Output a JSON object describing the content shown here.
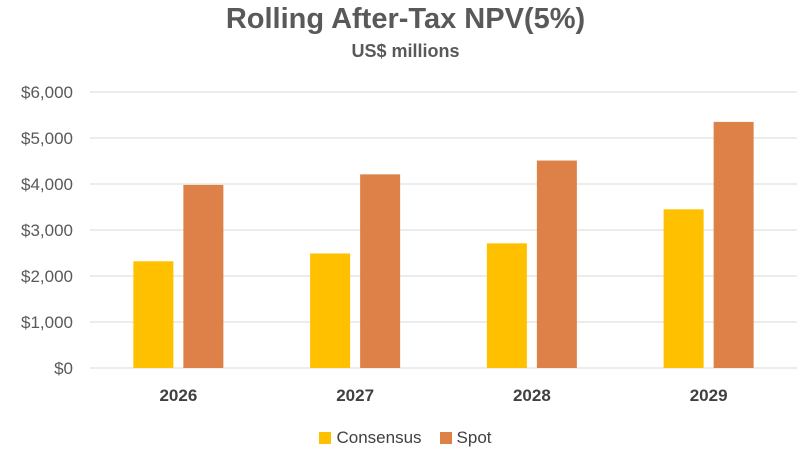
{
  "chart_data": {
    "type": "bar",
    "title": "Rolling After-Tax NPV(5%)",
    "subtitle": "US$ millions",
    "categories": [
      "2026",
      "2027",
      "2028",
      "2029"
    ],
    "series": [
      {
        "name": "Consensus",
        "color": "#FFC000",
        "values": [
          2320,
          2490,
          2710,
          3450
        ]
      },
      {
        "name": "Spot",
        "color": "#DD8148",
        "values": [
          3980,
          4210,
          4510,
          5350
        ]
      }
    ],
    "ylim": [
      0,
      6000
    ],
    "yticks": [
      0,
      1000,
      2000,
      3000,
      4000,
      5000,
      6000
    ],
    "ytick_labels": [
      "$0",
      "$1,000",
      "$2,000",
      "$3,000",
      "$4,000",
      "$5,000",
      "$6,000"
    ],
    "xlabel": "",
    "ylabel": "",
    "grid": true,
    "legend_position": "bottom"
  }
}
